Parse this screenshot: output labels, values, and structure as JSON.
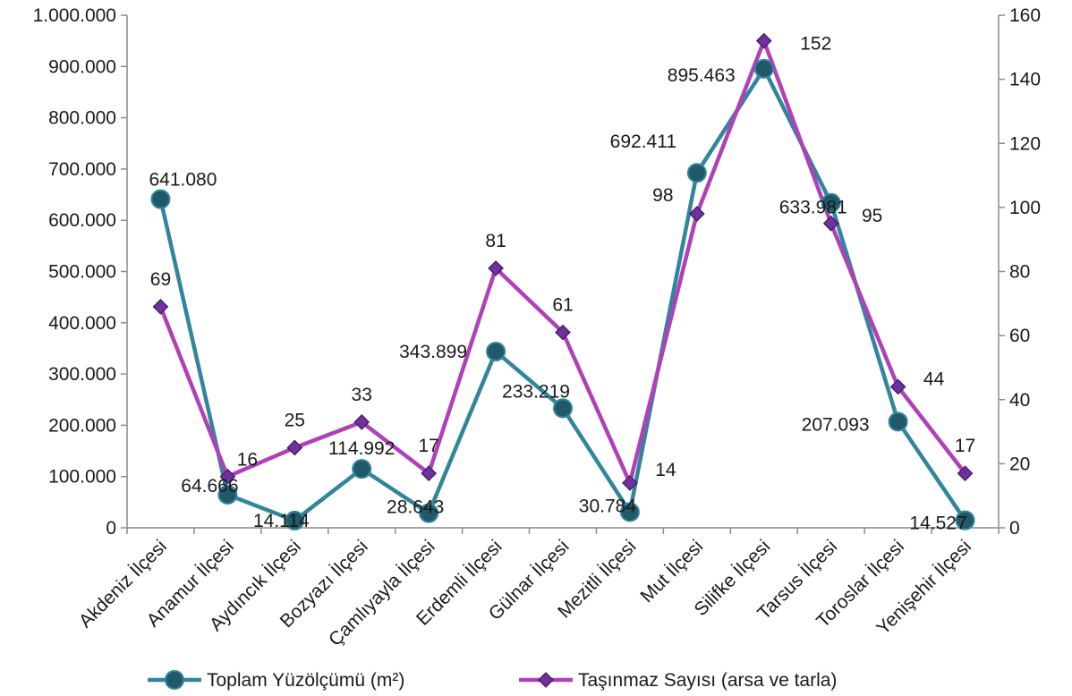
{
  "chart_data": {
    "type": "line",
    "categories": [
      "Akdeniz İlçesi",
      "Anamur İlçesi",
      "Aydıncık İlçesi",
      "Bozyazı İlçesi",
      "Çamlıyayla İlçesi",
      "Erdemli İlçesi",
      "Gülnar İlçesi",
      "Mezitli İlçesi",
      "Mut İlçesi",
      "Silifke İlçesi",
      "Tarsus İlçesi",
      "Toroslar İlçesi",
      "Yenişehir İlçesi"
    ],
    "series": [
      {
        "name": "Toplam Yüzölçümü (m²)",
        "axis": "left",
        "color": "#31859c",
        "marker": "circle",
        "values": [
          641080,
          64666,
          14114,
          114992,
          28643,
          343899,
          233219,
          30784,
          692411,
          895463,
          633981,
          207093,
          14527
        ],
        "labels": [
          "641.080",
          "64.666",
          "14.114",
          "114.992",
          "28.643",
          "343.899",
          "233.219",
          "30.784",
          "692.411",
          "895.463",
          "633.981",
          "207.093",
          "14.527"
        ]
      },
      {
        "name": "Taşınmaz Sayısı (arsa ve tarla)",
        "axis": "right",
        "color": "#b040b8",
        "marker_color": "#7030a0",
        "marker": "diamond",
        "values": [
          69,
          16,
          25,
          33,
          17,
          81,
          61,
          14,
          98,
          152,
          95,
          44,
          17
        ],
        "labels": [
          "69",
          "16",
          "25",
          "33",
          "17",
          "81",
          "61",
          "14",
          "98",
          "152",
          "95",
          "44",
          "17"
        ]
      }
    ],
    "y_left": {
      "ylim": [
        0,
        1000000
      ],
      "ticks": [
        "0",
        "100.000",
        "200.000",
        "300.000",
        "400.000",
        "500.000",
        "600.000",
        "700.000",
        "800.000",
        "900.000",
        "1.000.000"
      ]
    },
    "y_right": {
      "ylim": [
        0,
        160
      ],
      "ticks": [
        "0",
        "20",
        "40",
        "60",
        "80",
        "100",
        "120",
        "140",
        "160"
      ]
    },
    "grid": false,
    "legend_position": "bottom"
  }
}
